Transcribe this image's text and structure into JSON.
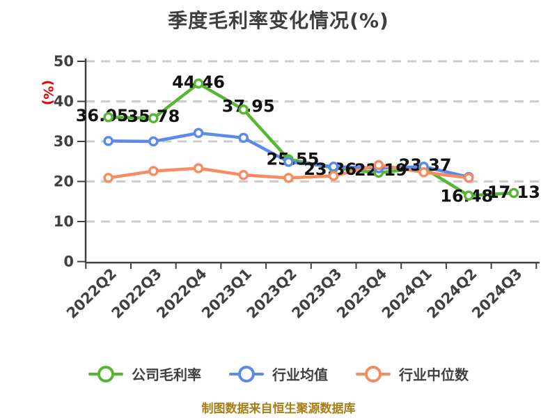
{
  "title": "季度毛利率变化情况(%)",
  "footer": "制图数据来自恒生聚源数据库",
  "colors": {
    "title_text": "#3e3e3e",
    "axis": "#404040",
    "grid": "#cccccc",
    "y_unit_label": "#e60000",
    "data_label": "#111111",
    "footer_text": "#a87d14",
    "series_company": "#57b733",
    "series_industry_mean": "#5b89ec",
    "series_industry_median": "#f68c5f"
  },
  "chart_data": {
    "type": "line",
    "title": "季度毛利率变化情况(%)",
    "ylabel": "(%)",
    "xlabel": "",
    "ylim": [
      0,
      50
    ],
    "yticks": [
      0,
      10,
      20,
      30,
      40,
      50
    ],
    "grid": "dashed horizontal",
    "legend_position": "bottom",
    "x_tick_label_rotation": 45,
    "categories": [
      "2022Q2",
      "2022Q3",
      "2022Q4",
      "2023Q1",
      "2023Q2",
      "2023Q3",
      "2023Q4",
      "2024Q1",
      "2024Q2",
      "2024Q3"
    ],
    "series": [
      {
        "name": "公司毛利率",
        "color": "#57b733",
        "marker": "circle-white-fill",
        "labeled": true,
        "values": [
          36.05,
          35.78,
          44.46,
          37.95,
          25.55,
          23.36,
          22.19,
          23.37,
          16.48,
          17.13
        ],
        "point_labels": [
          "36.05",
          "35.78",
          "44.46",
          "37.95",
          "25.55",
          "23.36",
          "22.19",
          "23.37",
          "16.48",
          "17.13"
        ]
      },
      {
        "name": "行业均值",
        "color": "#5b89ec",
        "marker": "circle-white-fill",
        "labeled": false,
        "values": [
          30.1,
          30.0,
          32.1,
          30.9,
          24.9,
          23.7,
          23.3,
          23.7,
          21.1,
          null
        ]
      },
      {
        "name": "行业中位数",
        "color": "#f68c5f",
        "marker": "circle-white-fill",
        "labeled": false,
        "values": [
          20.9,
          22.6,
          23.3,
          21.6,
          20.9,
          21.4,
          24.1,
          22.3,
          20.9,
          null
        ]
      }
    ]
  }
}
